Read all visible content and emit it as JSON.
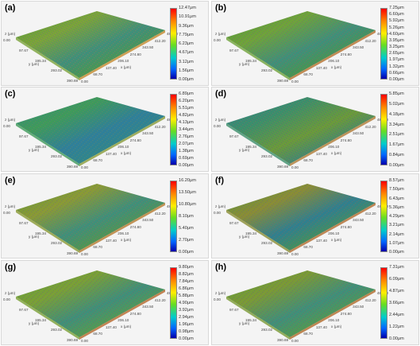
{
  "panels": [
    {
      "label": "(a)",
      "ticks": [
        "12.47μm",
        "10.91μm",
        "9.36μm",
        "7.79μm",
        "6.23μm",
        "4.67μm",
        "3.12μm",
        "1.56μm",
        "0.00μm"
      ],
      "axes": {
        "x_unit": "x (μm)",
        "y_unit": "y (μm)",
        "z_unit": "z (μm)"
      }
    },
    {
      "label": "(b)",
      "ticks": [
        "7.25μm",
        "6.60μm",
        "5.92μm",
        "5.26μm",
        "4.60μm",
        "3.95μm",
        "3.25μm",
        "2.65μm",
        "1.97μm",
        "1.32μm",
        "0.66μm",
        "0.00μm"
      ],
      "axes": {
        "x_unit": "x (μm)",
        "y_unit": "y (μm)",
        "z_unit": "z (μm)"
      }
    },
    {
      "label": "(c)",
      "ticks": [
        "6.89μm",
        "6.20μm",
        "5.51μm",
        "4.82μm",
        "4.13μm",
        "3.44μm",
        "2.76μm",
        "2.07μm",
        "1.38μm",
        "0.69μm",
        "0.00μm"
      ],
      "axes": {
        "x_unit": "x (μm)",
        "y_unit": "y (μm)",
        "z_unit": "z (μm)"
      }
    },
    {
      "label": "(d)",
      "ticks": [
        "5.85μm",
        "5.02μm",
        "4.18μm",
        "3.34μm",
        "2.51μm",
        "1.67μm",
        "0.84μm",
        "0.00μm"
      ],
      "axes": {
        "x_unit": "x (μm)",
        "y_unit": "y (μm)",
        "z_unit": "z (μm)"
      }
    },
    {
      "label": "(e)",
      "ticks": [
        "16.20μm",
        "13.50μm",
        "10.80μm",
        "8.10μm",
        "5.40μm",
        "2.70μm",
        "0.00μm"
      ],
      "axes": {
        "x_unit": "x (μm)",
        "y_unit": "y (μm)",
        "z_unit": "z (μm)"
      }
    },
    {
      "label": "(f)",
      "ticks": [
        "8.57μm",
        "7.50μm",
        "6.43μm",
        "5.36μm",
        "4.29μm",
        "3.21μm",
        "2.14μm",
        "1.07μm",
        "0.00μm"
      ],
      "axes": {
        "x_unit": "x (μm)",
        "y_unit": "y (μm)",
        "z_unit": "z (μm)"
      }
    },
    {
      "label": "(g)",
      "ticks": [
        "9.80μm",
        "8.82μm",
        "7.84μm",
        "6.86μm",
        "5.88μm",
        "4.90μm",
        "3.92μm",
        "2.94μm",
        "1.96μm",
        "0.98μm",
        "0.00μm"
      ],
      "axes": {
        "x_unit": "x (μm)",
        "y_unit": "y (μm)",
        "z_unit": "z (μm)"
      }
    },
    {
      "label": "(h)",
      "ticks": [
        "7.31μm",
        "6.09μm",
        "4.87μm",
        "3.66μm",
        "2.44μm",
        "1.22μm",
        "0.00μm"
      ],
      "axes": {
        "x_unit": "x (μm)",
        "y_unit": "y (μm)",
        "z_unit": "z (μm)"
      }
    }
  ],
  "colors": {
    "green": "#3d9a3a",
    "olive": "#7a8f2a",
    "teal": "#2f8c8a",
    "orange": "#b06a28",
    "blue": "#2d5fa6"
  },
  "icons": [
    "colorbar-scale"
  ]
}
